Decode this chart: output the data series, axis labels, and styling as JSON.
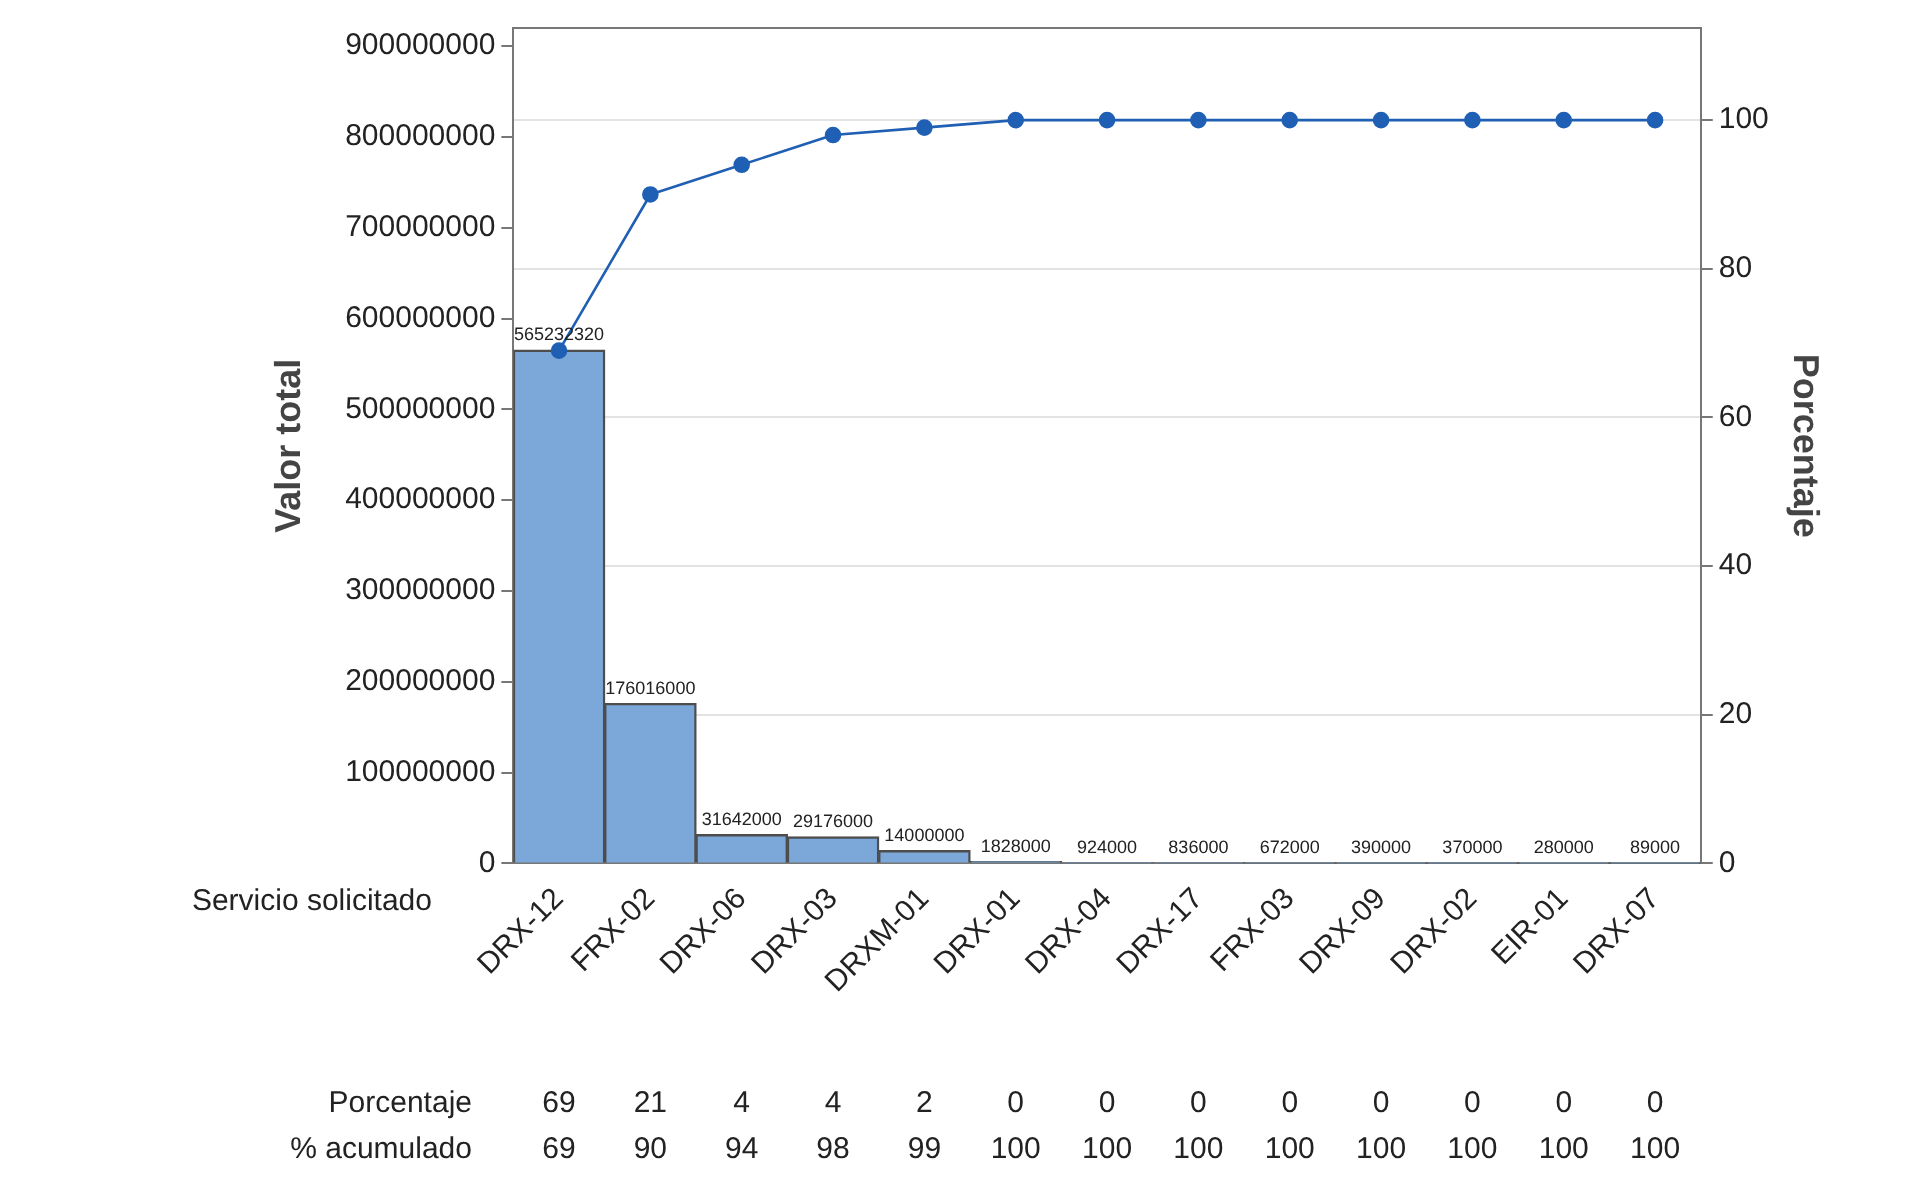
{
  "chart_data": {
    "type": "bar",
    "categories": [
      "DRX-12",
      "FRX-02",
      "DRX-06",
      "DRX-03",
      "DRXM-01",
      "DRX-01",
      "DRX-04",
      "DRX-17",
      "FRX-03",
      "DRX-09",
      "DRX-02",
      "EIR-01",
      "DRX-07"
    ],
    "xlabel": "Servicio solicitado",
    "ylabel": "Valor total",
    "y2label": "Porcentaje",
    "series": [
      {
        "color": "#7ba7d9",
        "values": [
          565232320,
          176016000,
          31642000,
          29176000,
          14000000,
          1828000,
          924000,
          836000,
          672000,
          390000,
          370000,
          280000,
          89000
        ]
      },
      {
        "type": "line",
        "name": "% acumulado",
        "axis": "y2",
        "color": "#1f5fb4",
        "values": [
          69,
          90,
          94,
          98,
          99,
          100,
          100,
          100,
          100,
          100,
          100,
          100,
          100
        ]
      }
    ],
    "ylim": [
      0,
      920000000
    ],
    "yticks": [
      0,
      100000000,
      200000000,
      300000000,
      400000000,
      500000000,
      600000000,
      700000000,
      800000000,
      900000000
    ],
    "y2lim": [
      0,
      112.4
    ],
    "y2ticks": [
      0,
      20,
      40,
      60,
      80,
      100
    ],
    "annotations": [
      "Porcentaje",
      "69",
      "21",
      "4",
      "4",
      "2",
      "0",
      "0",
      "0",
      "0",
      "0",
      "0",
      "0",
      "0"
    ],
    "grid": "y",
    "marker": "circle",
    "line_style": "solid",
    "data_labels": true
  }
}
